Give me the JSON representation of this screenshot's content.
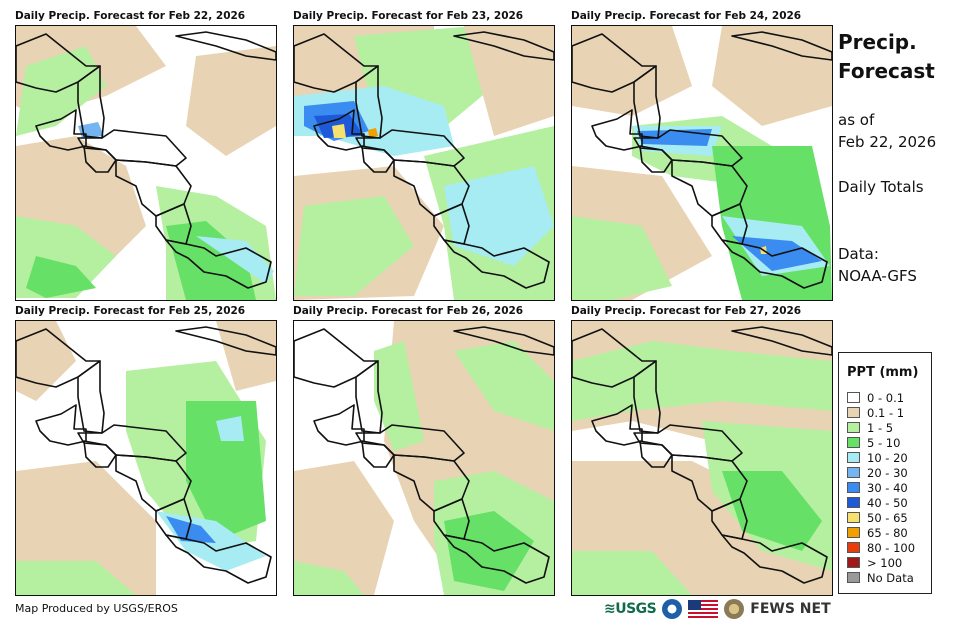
{
  "panels": [
    {
      "title": "Daily Precip. Forecast for Feb 22, 2026"
    },
    {
      "title": "Daily Precip. Forecast for Feb 23, 2026"
    },
    {
      "title": "Daily Precip. Forecast for Feb 24, 2026"
    },
    {
      "title": "Daily Precip. Forecast for Feb 25, 2026"
    },
    {
      "title": "Daily Precip. Forecast for Feb 26, 2026"
    },
    {
      "title": "Daily Precip. Forecast for Feb 27, 2026"
    }
  ],
  "side": {
    "title_line1": "Precip.",
    "title_line2": "Forecast",
    "asof_line1": "as of",
    "asof_line2": "Feb 22, 2026",
    "totals": "Daily Totals",
    "data_line1": "Data:",
    "data_line2": "NOAA-GFS"
  },
  "legend": {
    "title": "PPT (mm)",
    "items": [
      {
        "label": "0 - 0.1",
        "color": "#ffffff"
      },
      {
        "label": "0.1 - 1",
        "color": "#e8d4b4"
      },
      {
        "label": "1 - 5",
        "color": "#b4f0a0"
      },
      {
        "label": "5 - 10",
        "color": "#66e066"
      },
      {
        "label": "10 - 20",
        "color": "#a6ecf2"
      },
      {
        "label": "20 - 30",
        "color": "#74b4f0"
      },
      {
        "label": "30 - 40",
        "color": "#3a8cf0"
      },
      {
        "label": "40 - 50",
        "color": "#1e5ad8"
      },
      {
        "label": "50 - 65",
        "color": "#f5e070"
      },
      {
        "label": "65 - 80",
        "color": "#f0a000"
      },
      {
        "label": "80 - 100",
        "color": "#e83c0c"
      },
      {
        "label": "> 100",
        "color": "#a01818"
      },
      {
        "label": "No Data",
        "color": "#999999"
      }
    ]
  },
  "footer": {
    "credit": "Map Produced by USGS/EROS",
    "usgs": "≋USGS",
    "fews": "FEWS NET"
  }
}
